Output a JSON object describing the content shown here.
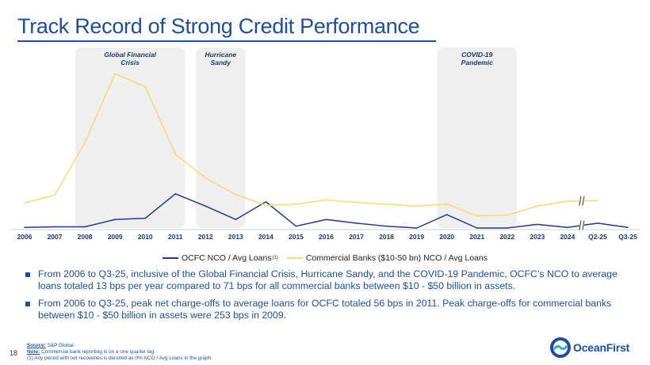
{
  "title": "Track Record of Strong Credit Performance",
  "page_number": "18",
  "chart_data": {
    "type": "line",
    "categories": [
      "2006",
      "2007",
      "2008",
      "2009",
      "2010",
      "2011",
      "2012",
      "2013",
      "2014",
      "2015",
      "2016",
      "2017",
      "2018",
      "2019",
      "2020",
      "2021",
      "2022",
      "2023",
      "2024",
      "Q2-25",
      "Q3-25"
    ],
    "series": [
      {
        "name": "OCFC NCO / Avg Loans",
        "color": "#1f3a8a",
        "values": [
          1,
          2,
          2,
          14,
          16,
          56,
          36,
          14,
          43,
          3,
          14,
          8,
          3,
          0,
          22,
          0,
          0,
          6,
          1,
          8,
          1
        ]
      },
      {
        "name": "Commercial Banks ($10-50 bn) NCO / Avg Loans",
        "color": "#f9d976",
        "values": [
          41,
          54,
          140,
          253,
          232,
          121,
          82,
          55,
          37,
          39,
          46,
          42,
          39,
          36,
          39,
          20,
          21,
          36,
          44,
          45,
          null
        ]
      }
    ],
    "legend_note": "(1)",
    "ylim": [
      0,
      270
    ],
    "break_between": [
      "2024",
      "Q2-25"
    ],
    "highlights": [
      {
        "label": "Global Financial Crisis",
        "from": "2008",
        "to": "2011"
      },
      {
        "label": "Hurricane Sandy",
        "from": "2012",
        "to": "2013"
      },
      {
        "label": "COVID-19 Pandemic",
        "from": "2020",
        "to": "2022"
      }
    ]
  },
  "legend": {
    "ocfc": "OCFC NCO / Avg Loans",
    "ocfc_note": "(1)",
    "banks": "Commercial Banks ($10-50 bn) NCO / Avg Loans"
  },
  "bullets": [
    "From 2006 to Q3-25, inclusive of the Global Financial Crisis, Hurricane Sandy, and the COVID-19 Pandemic, OCFC’s NCO to average loans totaled 13 bps per year compared to 71 bps for all commercial banks between $10 - $50 billion in assets.",
    "From 2006 to Q3-25, peak net charge-offs to average loans for OCFC totaled 56 bps in 2011. Peak charge-offs for commercial banks between $10 - $50 billion in assets were 253 bps in 2009."
  ],
  "notes": {
    "source_label": "Source:",
    "source_text": " S&P Global.",
    "note_label": "Note:",
    "note_text": " Commercial bank reporting is on a one quarter lag.",
    "footnote": "(1) Any period with net recoveries is denoted as 0% NCO / Avg Loans in the graph."
  },
  "logo": {
    "text": "OceanFirst"
  }
}
